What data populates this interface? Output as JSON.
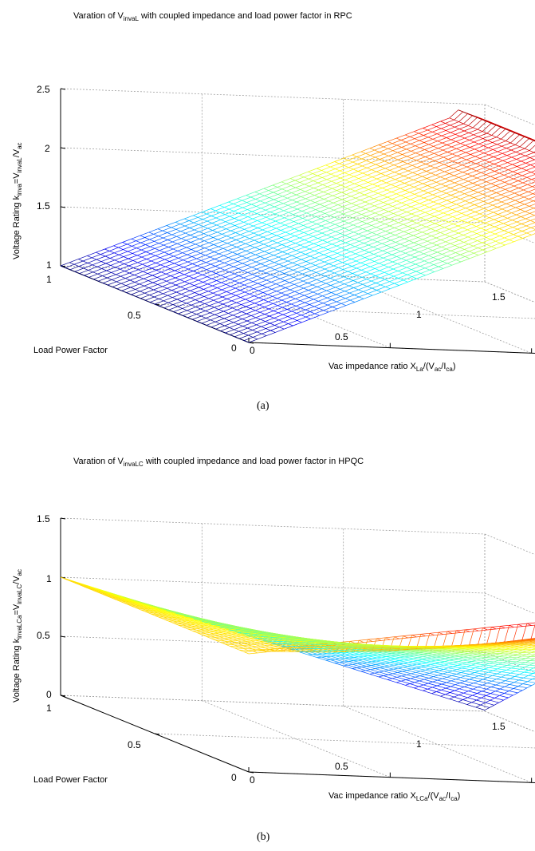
{
  "chart_data": [
    {
      "type": "surface",
      "panel": "a",
      "caption": "(a)",
      "title": {
        "pre": "Varation of V",
        "sub": "invaL",
        "post": " with coupled impedance and load power factor in RPC"
      },
      "zlabel": {
        "t1": "Voltage Rating k",
        "s1": "inva",
        "t2": "=V",
        "s2": "invaL",
        "t3": "/V",
        "s3": "ac"
      },
      "xlabel": {
        "t1": "Vac impedance ratio X",
        "s1": "La",
        "t2": "/(V",
        "s2": "ac",
        "t3": "/I",
        "s3": "ca",
        "t4": ")"
      },
      "ylabel": "Load Power Factor",
      "x_ticks": [
        "0",
        "0.5",
        "1",
        "1.5"
      ],
      "y_ticks": [
        "0",
        "0.5",
        "1"
      ],
      "z_ticks": [
        "1",
        "1.5",
        "2",
        "2.5"
      ],
      "x_range": [
        0,
        1.5
      ],
      "y_range": [
        0,
        1
      ],
      "z_range": [
        1,
        2.5
      ],
      "colormap": "jet",
      "grid": true,
      "surface_description": "k rises roughly linearly with impedance ratio from 1 at x=0 to about 2.5 at x=1.5, nearly independent of load power factor",
      "samples": [
        {
          "x": 0,
          "y": 0,
          "z": 1.0
        },
        {
          "x": 0,
          "y": 1,
          "z": 1.0
        },
        {
          "x": 1.5,
          "y": 0,
          "z": 2.5
        },
        {
          "x": 1.5,
          "y": 1,
          "z": 2.5
        }
      ]
    },
    {
      "type": "surface",
      "panel": "b",
      "caption": "(b)",
      "title": {
        "pre": "Varation of V",
        "sub": "invaLC",
        "post": " with coupled impedance and load power factor in HPQC"
      },
      "zlabel": {
        "t1": "Voltage Rating k",
        "s1": "invaLCa",
        "t2": "=V",
        "s2": "invaLC",
        "t3": "/V",
        "s3": "ac"
      },
      "xlabel": {
        "t1": "Vac impedance ratio X",
        "s1": "LCa",
        "t2": "/(V",
        "s2": "ac",
        "t3": "/I",
        "s3": "ca",
        "t4": ")"
      },
      "ylabel": "Load Power Factor",
      "x_ticks": [
        "0",
        "0.5",
        "1",
        "1.5"
      ],
      "y_ticks": [
        "0",
        "0.5",
        "1"
      ],
      "z_ticks": [
        "0",
        "0.5",
        "1",
        "1.5"
      ],
      "x_range": [
        0,
        1.5
      ],
      "y_range": [
        0,
        1
      ],
      "z_range": [
        0,
        1.5
      ],
      "colormap": "jet",
      "grid": true,
      "surface_description": "k equals 1 at zero impedance ratio; decreases toward about 0 at high load power factor and rises to about 1.5 at low power factor as ratio grows",
      "samples": [
        {
          "x": 0,
          "y": 0,
          "z": 1.0
        },
        {
          "x": 0,
          "y": 1,
          "z": 1.0
        },
        {
          "x": 1.5,
          "y": 1,
          "z": 0.0
        },
        {
          "x": 1.5,
          "y": 0,
          "z": 1.5
        }
      ]
    }
  ]
}
